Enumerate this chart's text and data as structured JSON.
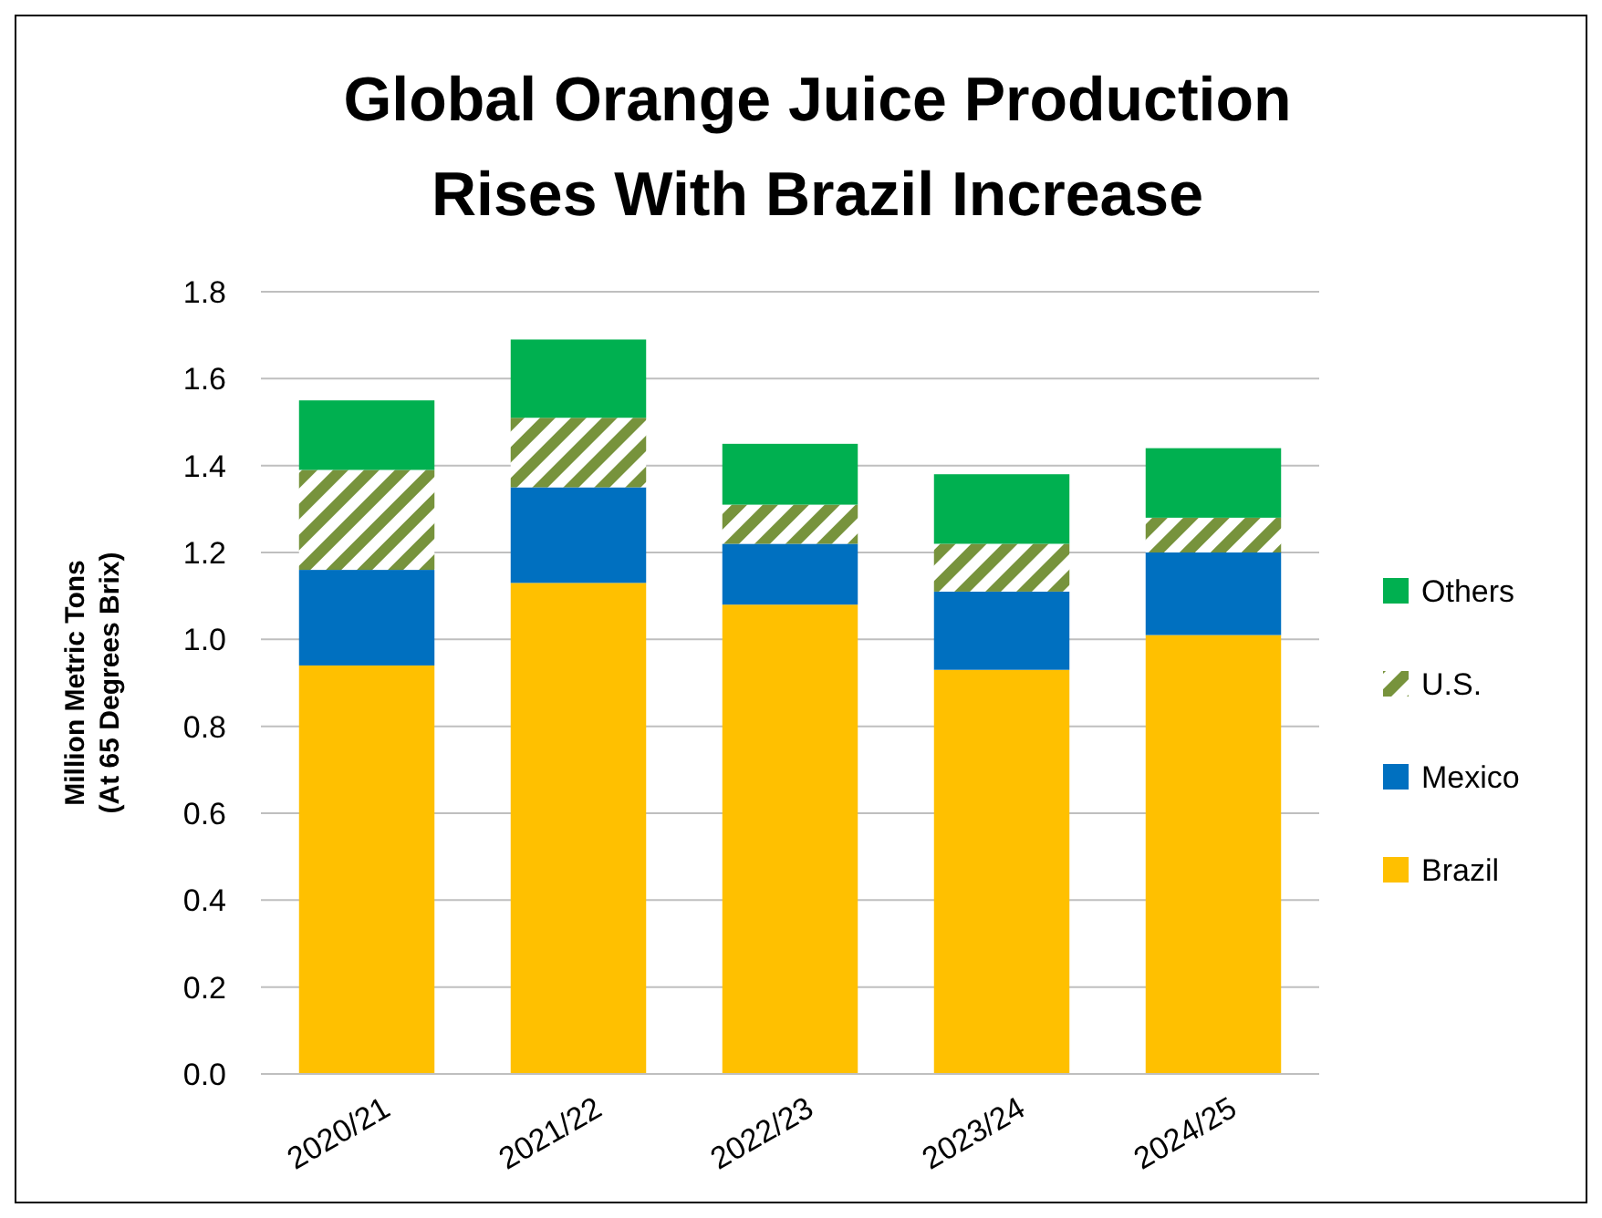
{
  "chart_data": {
    "type": "bar",
    "title": "Global Orange Juice Production Rises With Brazil Increase",
    "ylabel": "Million Metric Tons (At 65 Degrees Brix)",
    "categories": [
      "2020/21",
      "2021/22",
      "2022/23",
      "2023/24",
      "2024/25"
    ],
    "stacked": true,
    "series": [
      {
        "name": "Brazil",
        "color": "#ffc000",
        "values": [
          0.94,
          1.13,
          1.08,
          0.93,
          1.01
        ]
      },
      {
        "name": "Mexico",
        "color": "#0070c0",
        "values": [
          0.22,
          0.22,
          0.14,
          0.18,
          0.19
        ]
      },
      {
        "name": "U.S.",
        "color": "#77933c",
        "values": [
          0.23,
          0.16,
          0.09,
          0.11,
          0.08
        ]
      },
      {
        "name": "Others",
        "color": "#00b050",
        "values": [
          0.16,
          0.18,
          0.14,
          0.16,
          0.16
        ]
      }
    ],
    "ylim": [
      0,
      1.8
    ],
    "yticks": [
      {
        "value": 0,
        "label": "0.0"
      },
      {
        "value": 0.2,
        "label": "0.2"
      },
      {
        "value": 0.4,
        "label": "0.4"
      },
      {
        "value": 0.6,
        "label": "0.6"
      },
      {
        "value": 0.8,
        "label": "0.8"
      },
      {
        "value": 1,
        "label": "1.0"
      },
      {
        "value": 1.2,
        "label": "1.2"
      },
      {
        "value": 1.4,
        "label": "1.4"
      },
      {
        "value": 1.6,
        "label": "1.6"
      },
      {
        "value": 1.8,
        "label": "1.8"
      }
    ],
    "grid": "y",
    "legend": "right"
  }
}
